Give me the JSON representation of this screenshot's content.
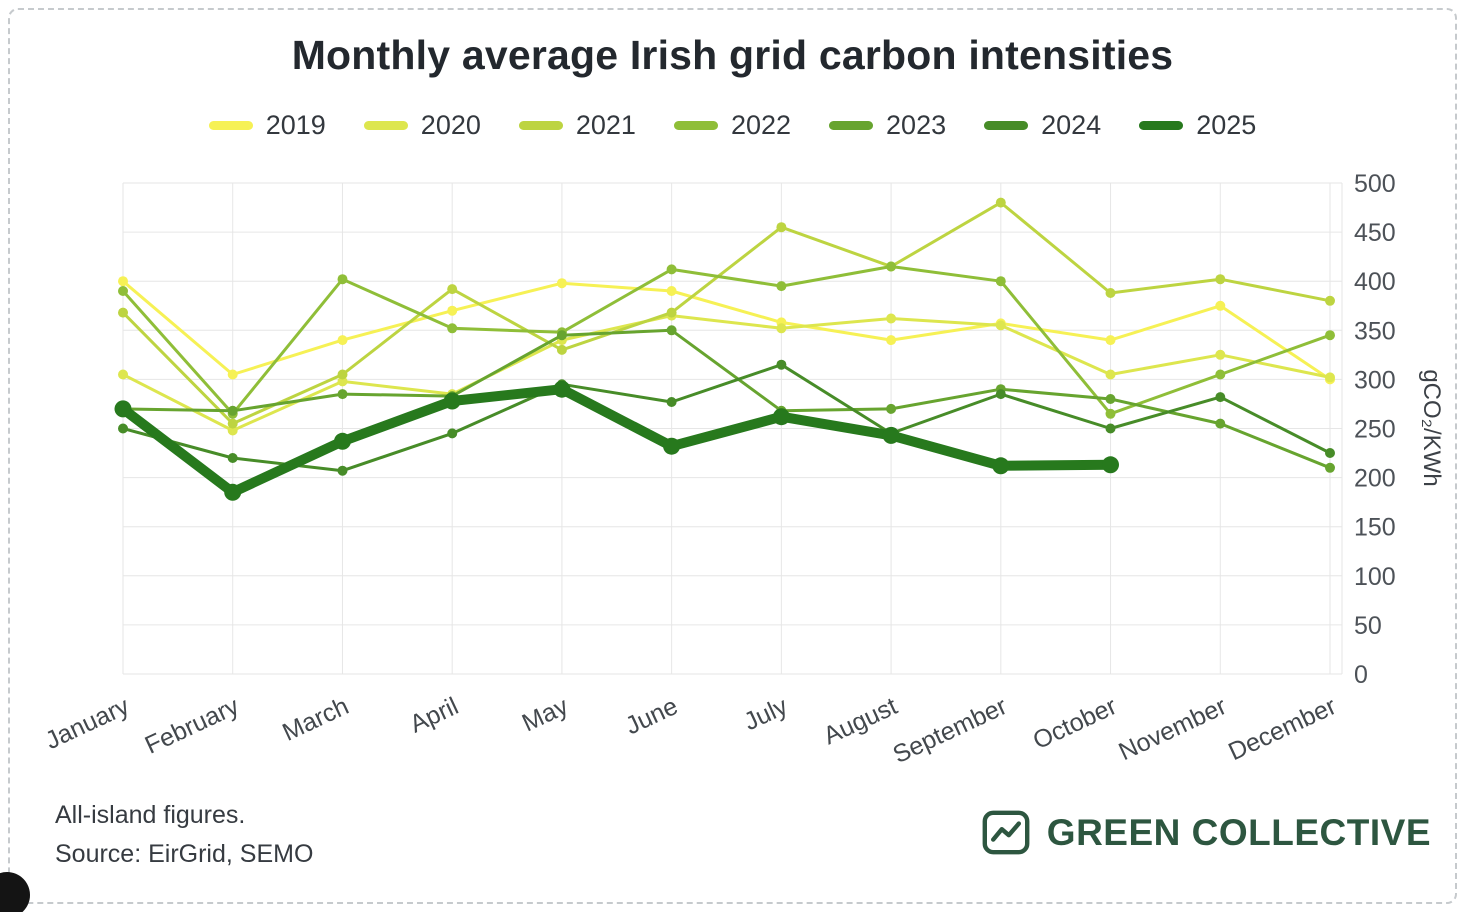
{
  "footnote": {
    "line1": "All-island figures.",
    "line2": "Source: EirGrid, SEMO"
  },
  "brand": {
    "name": "GREEN COLLECTIVE",
    "color": "#2d5640",
    "icon": "line-chart-icon"
  },
  "chart_data": {
    "type": "line",
    "title": "Monthly average Irish grid carbon intensities",
    "ylabel": "gCO₂/KWh",
    "xlabel": "",
    "ylim": [
      0,
      500
    ],
    "ytick_step": 50,
    "grid": true,
    "grid_color": "#e6e6e6",
    "legend_position": "top",
    "yaxis_side": "right",
    "categories": [
      "January",
      "February",
      "March",
      "April",
      "May",
      "June",
      "July",
      "August",
      "September",
      "October",
      "November",
      "December"
    ],
    "series": [
      {
        "name": "2019",
        "color": "#f6f155",
        "width": 3,
        "values": [
          400,
          305,
          340,
          370,
          398,
          390,
          358,
          340,
          357,
          340,
          375,
          300
        ]
      },
      {
        "name": "2020",
        "color": "#dde64e",
        "width": 3,
        "values": [
          305,
          248,
          298,
          285,
          340,
          365,
          352,
          362,
          355,
          305,
          325,
          302
        ]
      },
      {
        "name": "2021",
        "color": "#bdd441",
        "width": 3,
        "values": [
          368,
          255,
          305,
          392,
          330,
          368,
          455,
          415,
          480,
          388,
          402,
          380
        ]
      },
      {
        "name": "2022",
        "color": "#8fbe38",
        "width": 3,
        "values": [
          390,
          265,
          402,
          352,
          348,
          412,
          395,
          415,
          400,
          265,
          305,
          345
        ]
      },
      {
        "name": "2023",
        "color": "#67a42f",
        "width": 3,
        "values": [
          270,
          268,
          285,
          283,
          345,
          350,
          268,
          270,
          290,
          280,
          255,
          210
        ]
      },
      {
        "name": "2024",
        "color": "#478c28",
        "width": 3,
        "values": [
          250,
          220,
          207,
          245,
          295,
          277,
          315,
          245,
          285,
          250,
          282,
          225
        ]
      },
      {
        "name": "2025",
        "color": "#27791d",
        "width": 10,
        "values": [
          270,
          185,
          237,
          278,
          290,
          232,
          262,
          243,
          212,
          213,
          null,
          null
        ]
      }
    ]
  }
}
